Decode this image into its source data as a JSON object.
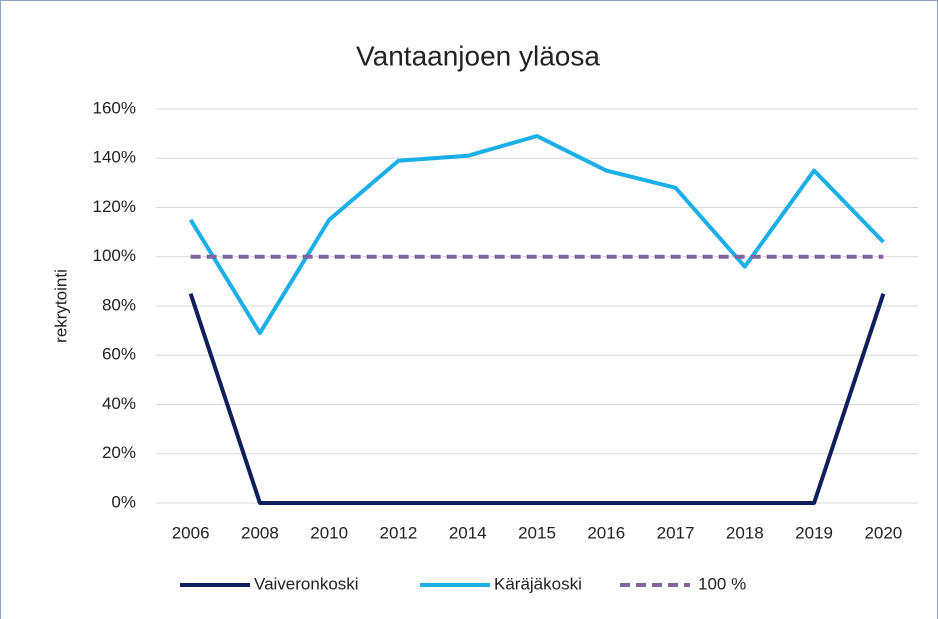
{
  "chart_data": {
    "type": "line",
    "title": "Vantaanjoen yläosa",
    "y_label": "rekrytointi",
    "categories": [
      "2006",
      "2008",
      "2010",
      "2012",
      "2014",
      "2015",
      "2016",
      "2017",
      "2018",
      "2019",
      "2020"
    ],
    "series": [
      {
        "name": "Vaiveronkoski",
        "color": "#0e1f5b",
        "dashed": false,
        "values": [
          85,
          0,
          0,
          0,
          0,
          0,
          0,
          0,
          0,
          0,
          85
        ]
      },
      {
        "name": "Käräjäkoski",
        "color": "#1aafe6",
        "dashed": false,
        "values": [
          115,
          69,
          115,
          139,
          141,
          149,
          135,
          128,
          96,
          135,
          106
        ]
      },
      {
        "name": "100 %",
        "color": "#8064a2",
        "dashed": true,
        "values": [
          100,
          100,
          100,
          100,
          100,
          100,
          100,
          100,
          100,
          100,
          100
        ]
      }
    ],
    "ylim": [
      0,
      160
    ],
    "yticks": [
      {
        "value": 0,
        "label": "0%"
      },
      {
        "value": 20,
        "label": "20%"
      },
      {
        "value": 40,
        "label": "40%"
      },
      {
        "value": 60,
        "label": "60%"
      },
      {
        "value": 80,
        "label": "80%"
      },
      {
        "value": 100,
        "label": "100%"
      },
      {
        "value": 120,
        "label": "120%"
      },
      {
        "value": 140,
        "label": "140%"
      },
      {
        "value": 160,
        "label": "160%"
      }
    ],
    "grid": true,
    "legend": "bottom"
  }
}
